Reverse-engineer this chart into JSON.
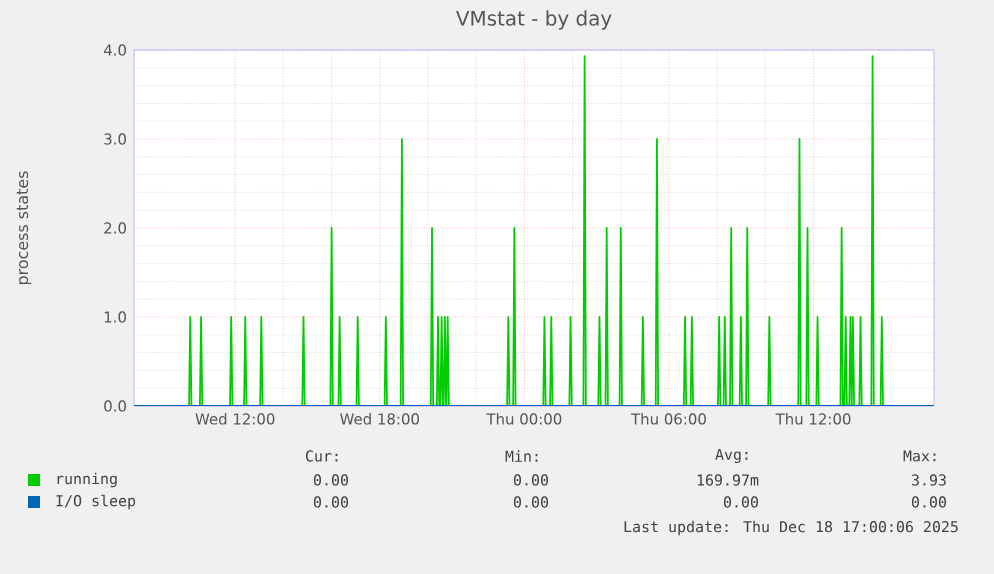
{
  "chart_data": {
    "type": "line",
    "title": "VMstat - by day",
    "ylabel": "process states",
    "xlim": [
      "2025-12-17T07:48",
      "2025-12-18T17:00"
    ],
    "ylim": [
      0,
      4
    ],
    "xticks": [
      {
        "value": "2025-12-17T12:00",
        "label": "Wed 12:00"
      },
      {
        "value": "2025-12-17T18:00",
        "label": "Wed 18:00"
      },
      {
        "value": "2025-12-18T00:00",
        "label": "Thu 00:00"
      },
      {
        "value": "2025-12-18T06:00",
        "label": "Thu 06:00"
      },
      {
        "value": "2025-12-18T12:00",
        "label": "Thu 12:00"
      }
    ],
    "yticks": [
      {
        "value": 0,
        "label": "0.0"
      },
      {
        "value": 1,
        "label": "1.0"
      },
      {
        "value": 2,
        "label": "2.0"
      },
      {
        "value": 3,
        "label": "3.0"
      },
      {
        "value": 4,
        "label": "4.0"
      }
    ],
    "grid": true,
    "legend": "bottom",
    "marker": "none",
    "line_style": "solid",
    "series": [
      {
        "name": "running",
        "color": "#00cc00",
        "x": [
          "2025-12-17T10:05",
          "2025-12-17T10:08",
          "2025-12-17T10:11",
          "2025-12-17T10:32",
          "2025-12-17T10:35",
          "2025-12-17T10:38",
          "2025-12-17T11:47",
          "2025-12-17T11:50",
          "2025-12-17T11:53",
          "2025-12-17T12:22",
          "2025-12-17T12:25",
          "2025-12-17T12:28",
          "2025-12-17T13:02",
          "2025-12-17T13:05",
          "2025-12-17T13:08",
          "2025-12-17T14:47",
          "2025-12-17T14:50",
          "2025-12-17T14:53",
          "2025-12-17T15:57",
          "2025-12-17T16:00",
          "2025-12-17T16:03",
          "2025-12-17T16:17",
          "2025-12-17T16:20",
          "2025-12-17T16:23",
          "2025-12-17T17:02",
          "2025-12-17T17:05",
          "2025-12-17T17:08",
          "2025-12-17T18:12",
          "2025-12-17T18:15",
          "2025-12-17T18:18",
          "2025-12-17T18:52",
          "2025-12-17T18:55",
          "2025-12-17T18:58",
          "2025-12-17T20:07",
          "2025-12-17T20:10",
          "2025-12-17T20:13",
          "2025-12-17T20:22",
          "2025-12-17T20:25",
          "2025-12-17T20:28",
          "2025-12-17T20:31",
          "2025-12-17T20:34",
          "2025-12-17T20:37",
          "2025-12-17T20:39",
          "2025-12-17T20:42",
          "2025-12-17T20:45",
          "2025-12-17T20:46",
          "2025-12-17T20:49",
          "2025-12-17T20:52",
          "2025-12-17T23:17",
          "2025-12-17T23:20",
          "2025-12-17T23:23",
          "2025-12-17T23:32",
          "2025-12-17T23:35",
          "2025-12-17T23:38",
          "2025-12-18T00:47",
          "2025-12-18T00:50",
          "2025-12-18T00:53",
          "2025-12-18T01:04",
          "2025-12-18T01:07",
          "2025-12-18T01:10",
          "2025-12-18T01:52",
          "2025-12-18T01:55",
          "2025-12-18T01:58",
          "2025-12-18T02:27",
          "2025-12-18T02:30",
          "2025-12-18T02:33",
          "2025-12-18T03:04",
          "2025-12-18T03:07",
          "2025-12-18T03:10",
          "2025-12-18T03:22",
          "2025-12-18T03:25",
          "2025-12-18T03:28",
          "2025-12-18T03:57",
          "2025-12-18T04:00",
          "2025-12-18T04:03",
          "2025-12-18T04:52",
          "2025-12-18T04:55",
          "2025-12-18T04:58",
          "2025-12-18T05:27",
          "2025-12-18T05:30",
          "2025-12-18T05:33",
          "2025-12-18T06:37",
          "2025-12-18T06:40",
          "2025-12-18T06:43",
          "2025-12-18T06:54",
          "2025-12-18T06:57",
          "2025-12-18T07:00",
          "2025-12-18T08:02",
          "2025-12-18T08:05",
          "2025-12-18T08:08",
          "2025-12-18T08:16",
          "2025-12-18T08:19",
          "2025-12-18T08:22",
          "2025-12-18T08:32",
          "2025-12-18T08:35",
          "2025-12-18T08:38",
          "2025-12-18T08:56",
          "2025-12-18T08:59",
          "2025-12-18T09:02",
          "2025-12-18T09:12",
          "2025-12-18T09:15",
          "2025-12-18T09:18",
          "2025-12-18T10:07",
          "2025-12-18T10:10",
          "2025-12-18T10:13",
          "2025-12-18T11:22",
          "2025-12-18T11:25",
          "2025-12-18T11:28",
          "2025-12-18T11:42",
          "2025-12-18T11:45",
          "2025-12-18T11:48",
          "2025-12-18T12:07",
          "2025-12-18T12:10",
          "2025-12-18T12:13",
          "2025-12-18T13:07",
          "2025-12-18T13:10",
          "2025-12-18T13:13",
          "2025-12-18T13:17",
          "2025-12-18T13:20",
          "2025-12-18T13:23",
          "2025-12-18T13:29",
          "2025-12-18T13:32",
          "2025-12-18T13:35",
          "2025-12-18T13:35",
          "2025-12-18T13:38",
          "2025-12-18T13:41",
          "2025-12-18T13:54",
          "2025-12-18T13:57",
          "2025-12-18T14:00",
          "2025-12-18T14:24",
          "2025-12-18T14:27",
          "2025-12-18T14:30",
          "2025-12-18T14:47",
          "2025-12-18T14:50",
          "2025-12-18T14:53"
        ],
        "values": [
          0,
          1,
          0,
          0,
          1,
          0,
          0,
          1,
          0,
          0,
          1,
          0,
          0,
          1,
          0,
          0,
          1,
          0,
          0,
          2,
          0,
          0,
          1,
          0,
          0,
          1,
          0,
          0,
          1,
          0,
          0,
          3,
          0,
          0,
          2,
          0,
          0,
          1,
          0,
          0,
          1,
          0,
          0,
          1,
          0,
          0,
          1,
          0,
          0,
          1,
          0,
          0,
          2,
          0,
          0,
          1,
          0,
          0,
          1,
          0,
          0,
          1,
          0,
          0,
          3.93,
          0,
          0,
          1,
          0,
          0,
          2,
          0,
          0,
          2,
          0,
          0,
          1,
          0,
          0,
          3,
          0,
          0,
          1,
          0,
          0,
          1,
          0,
          0,
          1,
          0,
          0,
          1,
          0,
          0,
          2,
          0,
          0,
          1,
          0,
          0,
          2,
          0,
          0,
          1,
          0,
          0,
          3,
          0,
          0,
          2,
          0,
          0,
          1,
          0,
          0,
          2,
          0,
          0,
          1,
          0,
          0,
          1,
          0,
          0,
          1,
          0,
          0,
          1,
          0,
          0,
          3.93,
          0,
          0,
          1,
          0
        ]
      },
      {
        "name": "I/O sleep",
        "color": "#0066b3",
        "x": [
          "2025-12-17T07:48",
          "2025-12-18T17:00"
        ],
        "values": [
          0,
          0
        ]
      }
    ],
    "annotations": [
      "Cur:",
      "Min:",
      "Avg:",
      "Max:",
      "0.00",
      "0.00",
      "169.97m",
      "3.93",
      "0.00",
      "0.00",
      "0.00",
      "0.00",
      "Last update: Thu Dec 18 17:00:06 2025"
    ]
  }
}
